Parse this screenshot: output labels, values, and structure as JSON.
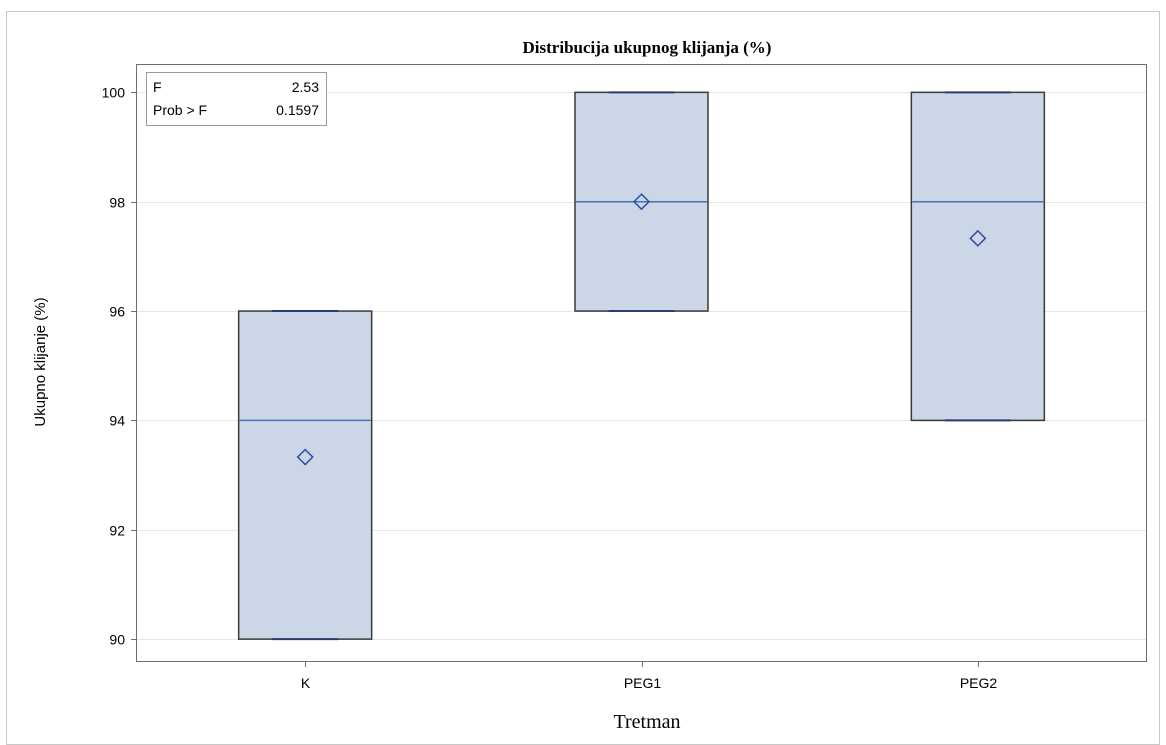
{
  "chart_data": {
    "type": "box",
    "title": "Distribucija ukupnog klijanja (%)",
    "xlabel": "Tretman",
    "ylabel": "Ukupno klijanje (%)",
    "ylim": [
      89.6,
      100.5
    ],
    "yticks": [
      90,
      92,
      94,
      96,
      98,
      100
    ],
    "ytick_labels": [
      "90",
      "92",
      "94",
      "96",
      "98",
      "100"
    ],
    "grid": true,
    "categories": [
      "K",
      "PEG1",
      "PEG2"
    ],
    "boxes": [
      {
        "category": "K",
        "min": 90,
        "q1": 90,
        "median": 94,
        "q3": 96,
        "max": 96,
        "mean": 93.33
      },
      {
        "category": "PEG1",
        "min": 96,
        "q1": 96,
        "median": 98,
        "q3": 100,
        "max": 100,
        "mean": 98
      },
      {
        "category": "PEG2",
        "min": 94,
        "q1": 94,
        "median": 98,
        "q3": 100,
        "max": 100,
        "mean": 97.33
      }
    ],
    "inset": {
      "rows": [
        {
          "label": "F",
          "value": "2.53"
        },
        {
          "label": "Prob > F",
          "value": "0.1597"
        }
      ],
      "position": "top-left"
    },
    "colors": {
      "box_fill": "#cbd7e7",
      "box_edge": "#3a3a3a",
      "median": "#4b6fb5",
      "mean_marker": "#2f4fa8",
      "whisker_cap": "#2a3d6e",
      "grid": "#e6e6e6",
      "axis": "#6e6e6e"
    }
  }
}
